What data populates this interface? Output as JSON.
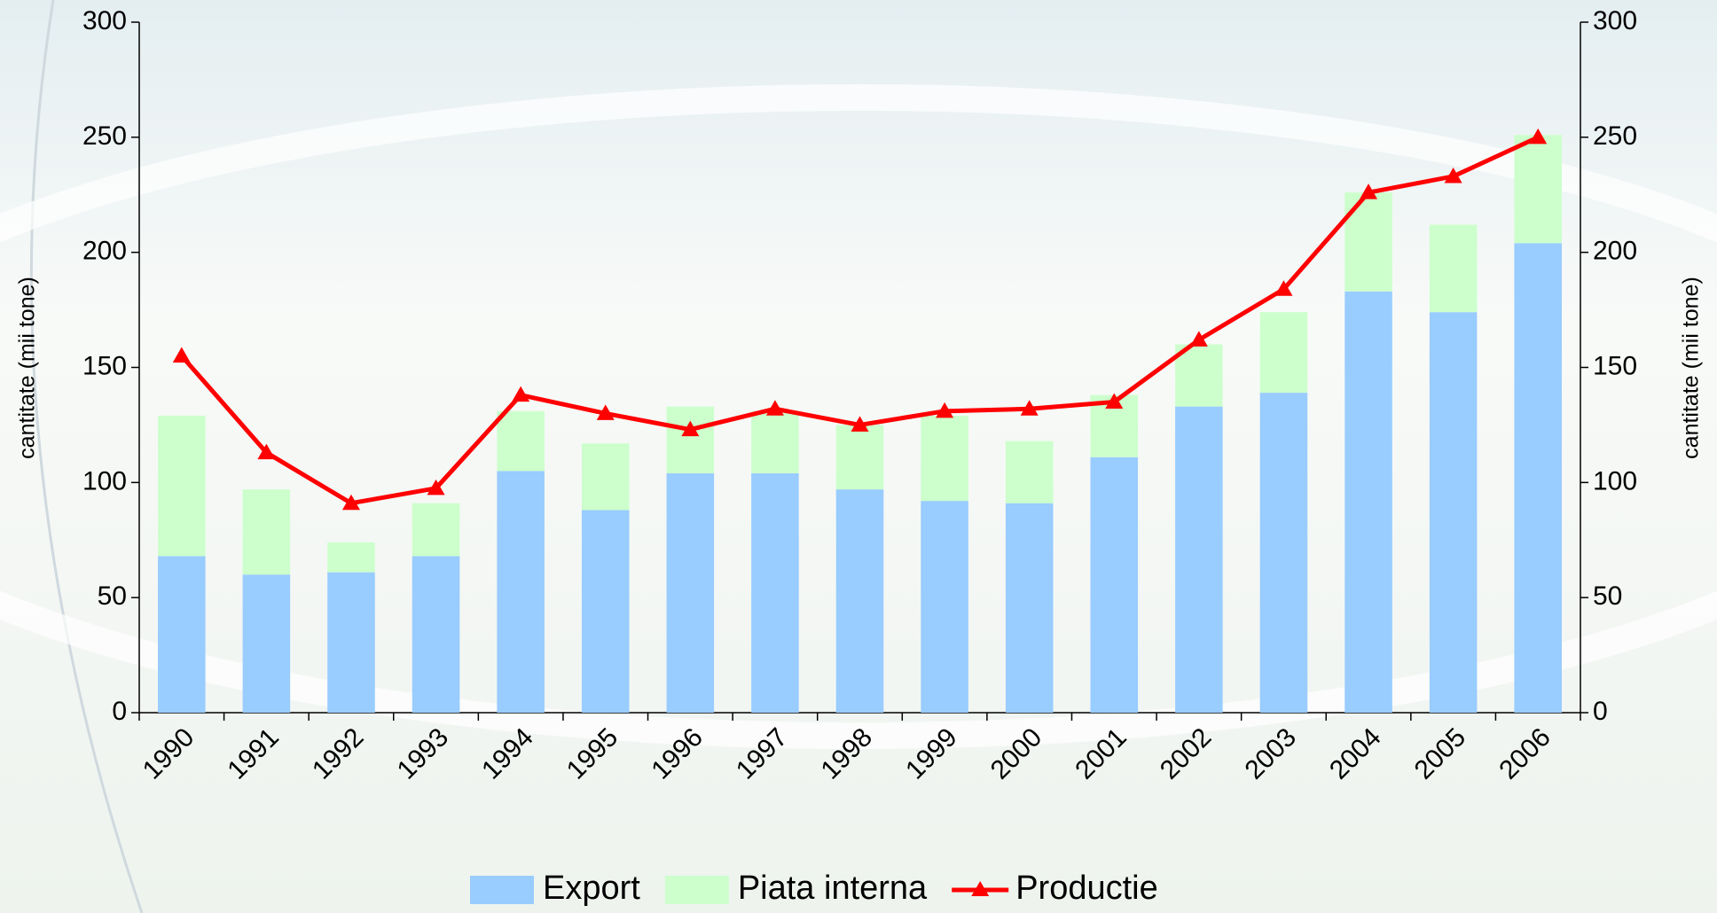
{
  "chart_data": {
    "type": "bar",
    "categories": [
      "1990",
      "1991",
      "1992",
      "1993",
      "1994",
      "1995",
      "1996",
      "1997",
      "1998",
      "1999",
      "2000",
      "2001",
      "2002",
      "2003",
      "2004",
      "2005",
      "2006"
    ],
    "series": [
      {
        "name": "Export",
        "color": "#99ccff",
        "values": [
          68,
          60,
          61,
          68,
          105,
          88,
          104,
          104,
          97,
          92,
          91,
          111,
          133,
          139,
          183,
          174,
          204
        ]
      },
      {
        "name": "Piata interna",
        "color": "#ccffcc",
        "values": [
          61,
          37,
          13,
          23,
          26,
          29,
          29,
          27,
          28,
          37,
          27,
          27,
          27,
          35,
          43,
          38,
          47
        ]
      },
      {
        "name": "Productie",
        "type": "line",
        "color": "#ff0000",
        "values": [
          155,
          113,
          91,
          97.5,
          138,
          130,
          123,
          132,
          125,
          131,
          132,
          135,
          162,
          184,
          226,
          233,
          250
        ]
      }
    ],
    "stacked": true,
    "ylabel": "cantitate (mii tone)",
    "y2label": "cantitate (mii tone)",
    "ylim": [
      0,
      300
    ],
    "yticks": [
      0,
      50,
      100,
      150,
      200,
      250,
      300
    ],
    "y2lim": [
      0,
      300
    ],
    "y2ticks": [
      0,
      50,
      100,
      150,
      200,
      250,
      300
    ],
    "legend": "bottom"
  }
}
